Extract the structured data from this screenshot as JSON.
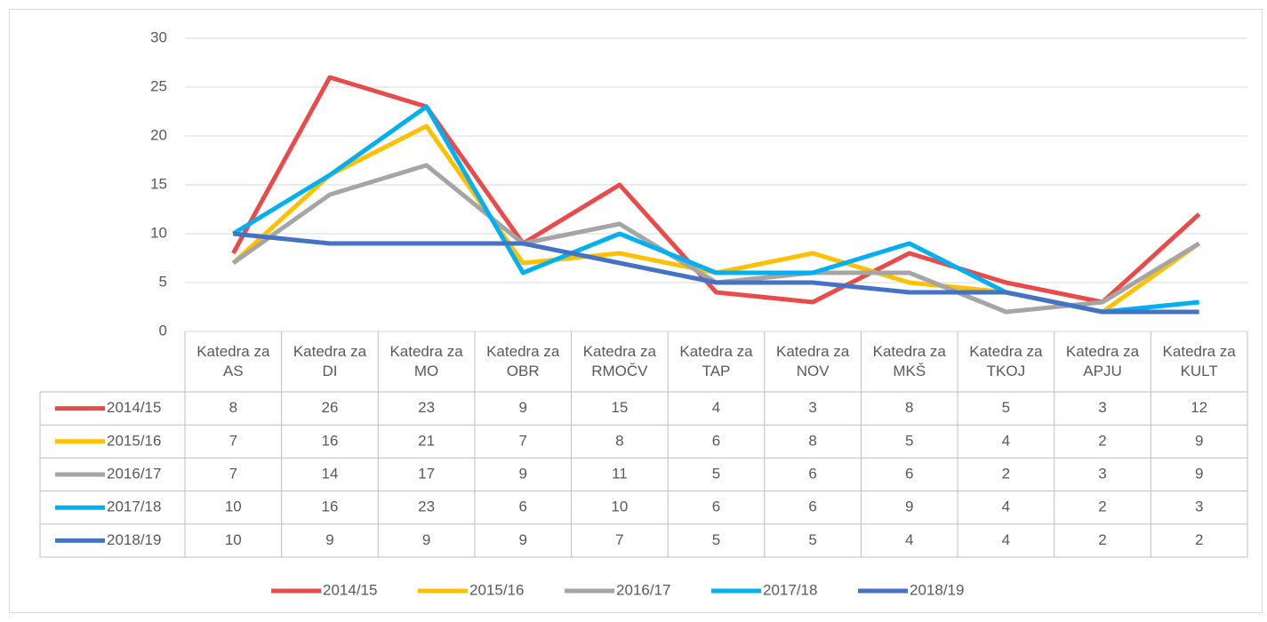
{
  "chart_data": {
    "type": "line",
    "categories": [
      "Katedra za AS",
      "Katedra za DI",
      "Katedra za MO",
      "Katedra za OBR",
      "Katedra za RMOČV",
      "Katedra za TAP",
      "Katedra za NOV",
      "Katedra za MKŠ",
      "Katedra za TKOJ",
      "Katedra za APJU",
      "Katedra za KULT"
    ],
    "series": [
      {
        "name": "2014/15",
        "color": "#e94b4b",
        "values": [
          8,
          26,
          23,
          9,
          15,
          4,
          3,
          8,
          5,
          3,
          12
        ]
      },
      {
        "name": "2015/16",
        "color": "#ffc000",
        "values": [
          7,
          16,
          21,
          7,
          8,
          6,
          8,
          5,
          4,
          2,
          9
        ]
      },
      {
        "name": "2016/17",
        "color": "#a5a5a5",
        "values": [
          7,
          14,
          17,
          9,
          11,
          5,
          6,
          6,
          2,
          3,
          9
        ]
      },
      {
        "name": "2017/18",
        "color": "#00b0f0",
        "values": [
          10,
          16,
          23,
          6,
          10,
          6,
          6,
          9,
          4,
          2,
          3
        ]
      },
      {
        "name": "2018/19",
        "color": "#4472c4",
        "values": [
          10,
          9,
          9,
          9,
          7,
          5,
          5,
          4,
          4,
          2,
          2
        ]
      }
    ],
    "ylim": [
      0,
      30
    ],
    "yticks": [
      0,
      5,
      10,
      15,
      20,
      25,
      30
    ],
    "grid": true,
    "legend": "bottom",
    "data_table": true
  }
}
